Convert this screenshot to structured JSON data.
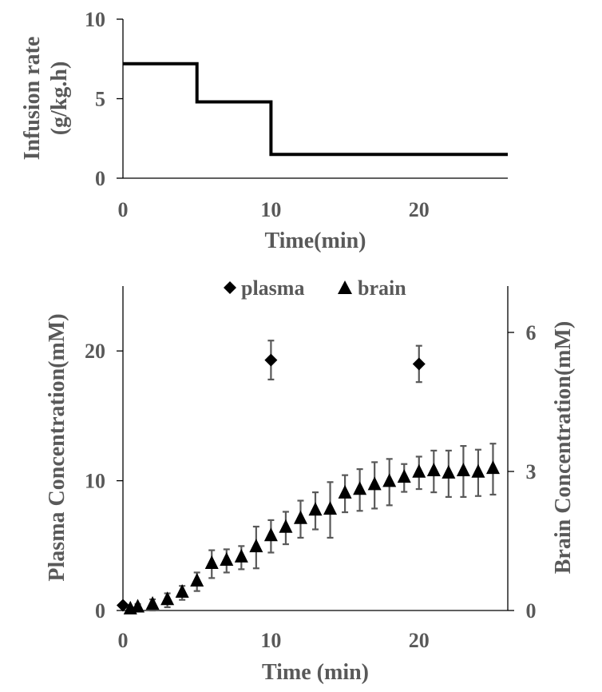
{
  "chart_data": [
    {
      "type": "line",
      "step": true,
      "xlabel": "Time(min)",
      "ylabel_line1": "Infusion rate",
      "ylabel_line2": "(g/kg.h)",
      "xlim": [
        0,
        26
      ],
      "ylim": [
        0,
        10
      ],
      "xticks": [
        0,
        10,
        20
      ],
      "yticks": [
        0,
        5,
        10
      ],
      "series": [
        {
          "name": "infusion rate",
          "x": [
            0,
            5,
            5,
            10,
            10,
            26
          ],
          "y": [
            7.2,
            7.2,
            4.8,
            4.8,
            1.5,
            1.5
          ]
        }
      ]
    },
    {
      "type": "scatter",
      "xlabel": "Time (min)",
      "ylabel": "Plasma Concentration(mM)",
      "ylabel_right": "Brain Concentration(mM)",
      "xlim": [
        0,
        26
      ],
      "ylim": [
        0,
        25
      ],
      "ylim_right": [
        0,
        7
      ],
      "xticks": [
        0,
        10,
        20
      ],
      "yticks": [
        0,
        10,
        20
      ],
      "yticks_right": [
        0,
        3,
        6
      ],
      "legend": [
        "plasma",
        "brain"
      ],
      "legend_position": "top-center",
      "series": [
        {
          "name": "plasma",
          "marker": "diamond",
          "axis": "left",
          "x": [
            0,
            10,
            20
          ],
          "y": [
            0.4,
            19.3,
            19.0
          ],
          "err": [
            0,
            1.5,
            1.4
          ]
        },
        {
          "name": "brain",
          "marker": "triangle",
          "axis": "right",
          "x": [
            0.5,
            1,
            2,
            3,
            4,
            5,
            6,
            7,
            8,
            9,
            10,
            11,
            12,
            13,
            14,
            15,
            16,
            17,
            18,
            19,
            20,
            21,
            22,
            23,
            24,
            25
          ],
          "y": [
            0.02,
            0.06,
            0.12,
            0.22,
            0.38,
            0.62,
            1.0,
            1.07,
            1.14,
            1.36,
            1.6,
            1.78,
            1.97,
            2.15,
            2.17,
            2.52,
            2.6,
            2.7,
            2.77,
            2.86,
            2.97,
            3.0,
            2.95,
            3.0,
            2.97,
            3.05
          ],
          "err": [
            0.05,
            0.08,
            0.12,
            0.15,
            0.15,
            0.2,
            0.3,
            0.25,
            0.25,
            0.45,
            0.35,
            0.35,
            0.4,
            0.4,
            0.6,
            0.4,
            0.45,
            0.5,
            0.5,
            0.3,
            0.35,
            0.45,
            0.5,
            0.55,
            0.5,
            0.55
          ]
        }
      ]
    }
  ]
}
